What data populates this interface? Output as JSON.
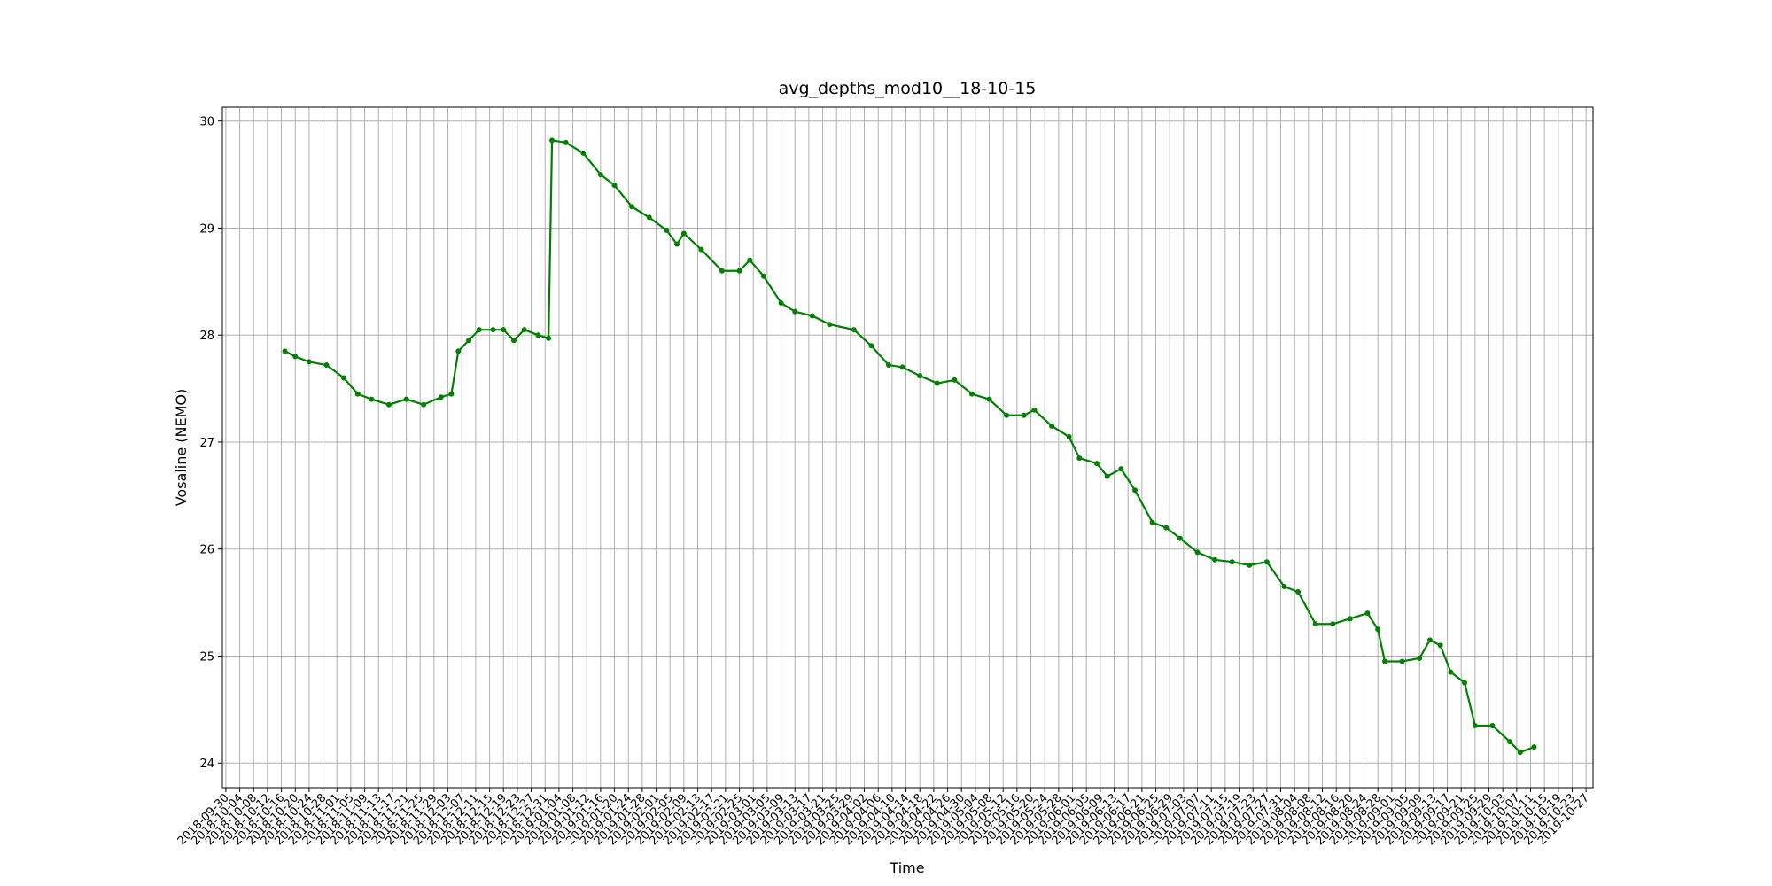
{
  "chart_data": {
    "type": "line",
    "title": "avg_depths_mod10__18-10-15",
    "xlabel": "Time",
    "ylabel": "Vosaline (NEMO)",
    "grid": true,
    "x": [
      "2018-10-17",
      "2018-10-20",
      "2018-10-24",
      "2018-10-29",
      "2018-11-03",
      "2018-11-07",
      "2018-11-11",
      "2018-11-16",
      "2018-11-21",
      "2018-11-26",
      "2018-12-01",
      "2018-12-04",
      "2018-12-06",
      "2018-12-09",
      "2018-12-12",
      "2018-12-16",
      "2018-12-19",
      "2018-12-22",
      "2018-12-25",
      "2018-12-29",
      "2019-01-01",
      "2019-01-02",
      "2019-01-06",
      "2019-01-11",
      "2019-01-16",
      "2019-01-20",
      "2019-01-25",
      "2019-01-30",
      "2019-02-04",
      "2019-02-07",
      "2019-02-09",
      "2019-02-14",
      "2019-02-20",
      "2019-02-25",
      "2019-02-28",
      "2019-03-04",
      "2019-03-09",
      "2019-03-13",
      "2019-03-18",
      "2019-03-23",
      "2019-03-30",
      "2019-04-04",
      "2019-04-09",
      "2019-04-13",
      "2019-04-18",
      "2019-04-23",
      "2019-04-28",
      "2019-05-03",
      "2019-05-08",
      "2019-05-13",
      "2019-05-18",
      "2019-05-21",
      "2019-05-26",
      "2019-05-31",
      "2019-06-03",
      "2019-06-08",
      "2019-06-11",
      "2019-06-15",
      "2019-06-19",
      "2019-06-24",
      "2019-06-28",
      "2019-07-02",
      "2019-07-07",
      "2019-07-12",
      "2019-07-17",
      "2019-07-22",
      "2019-07-27",
      "2019-08-01",
      "2019-08-05",
      "2019-08-10",
      "2019-08-15",
      "2019-08-20",
      "2019-08-25",
      "2019-08-28",
      "2019-08-30",
      "2019-09-04",
      "2019-09-09",
      "2019-09-12",
      "2019-09-15",
      "2019-09-18",
      "2019-09-22",
      "2019-09-25",
      "2019-09-30",
      "2019-10-05",
      "2019-10-08",
      "2019-10-12"
    ],
    "series": [
      {
        "color": "#008000",
        "values": [
          27.85,
          27.8,
          27.75,
          27.72,
          27.6,
          27.45,
          27.4,
          27.35,
          27.4,
          27.35,
          27.42,
          27.45,
          27.85,
          27.95,
          28.05,
          28.05,
          28.05,
          27.95,
          28.05,
          28.0,
          27.97,
          29.82,
          29.8,
          29.7,
          29.5,
          29.4,
          29.2,
          29.1,
          28.98,
          28.85,
          28.95,
          28.8,
          28.6,
          28.6,
          28.7,
          28.55,
          28.3,
          28.22,
          28.18,
          28.1,
          28.05,
          27.9,
          27.72,
          27.7,
          27.62,
          27.55,
          27.58,
          27.45,
          27.4,
          27.25,
          27.25,
          27.3,
          27.15,
          27.05,
          26.85,
          26.8,
          26.68,
          26.75,
          26.55,
          26.25,
          26.2,
          26.1,
          25.97,
          25.9,
          25.88,
          25.85,
          25.88,
          25.65,
          25.6,
          25.3,
          25.3,
          25.35,
          25.4,
          25.25,
          24.95,
          24.95,
          24.98,
          25.15,
          25.1,
          24.85,
          24.75,
          24.35,
          24.35,
          24.2,
          24.1,
          24.15
        ]
      }
    ],
    "xlim": [
      "2018-09-29",
      "2019-10-29"
    ],
    "xticks": [
      "2018-09-30",
      "2018-10-04",
      "2018-10-08",
      "2018-10-12",
      "2018-10-16",
      "2018-10-20",
      "2018-10-24",
      "2018-10-28",
      "2018-11-01",
      "2018-11-05",
      "2018-11-09",
      "2018-11-13",
      "2018-11-17",
      "2018-11-21",
      "2018-11-25",
      "2018-11-29",
      "2018-12-03",
      "2018-12-07",
      "2018-12-11",
      "2018-12-15",
      "2018-12-19",
      "2018-12-23",
      "2018-12-27",
      "2018-12-31",
      "2019-01-04",
      "2019-01-08",
      "2019-01-12",
      "2019-01-16",
      "2019-01-20",
      "2019-01-24",
      "2019-01-28",
      "2019-02-01",
      "2019-02-05",
      "2019-02-09",
      "2019-02-13",
      "2019-02-17",
      "2019-02-21",
      "2019-02-25",
      "2019-03-01",
      "2019-03-05",
      "2019-03-09",
      "2019-03-13",
      "2019-03-17",
      "2019-03-21",
      "2019-03-25",
      "2019-03-29",
      "2019-04-02",
      "2019-04-06",
      "2019-04-10",
      "2019-04-14",
      "2019-04-18",
      "2019-04-22",
      "2019-04-26",
      "2019-04-30",
      "2019-05-04",
      "2019-05-08",
      "2019-05-12",
      "2019-05-16",
      "2019-05-20",
      "2019-05-24",
      "2019-05-28",
      "2019-06-01",
      "2019-06-05",
      "2019-06-09",
      "2019-06-13",
      "2019-06-17",
      "2019-06-21",
      "2019-06-25",
      "2019-06-29",
      "2019-07-03",
      "2019-07-07",
      "2019-07-11",
      "2019-07-15",
      "2019-07-19",
      "2019-07-23",
      "2019-07-27",
      "2019-07-31",
      "2019-08-04",
      "2019-08-08",
      "2019-08-12",
      "2019-08-16",
      "2019-08-20",
      "2019-08-24",
      "2019-08-28",
      "2019-09-01",
      "2019-09-05",
      "2019-09-09",
      "2019-09-13",
      "2019-09-17",
      "2019-09-21",
      "2019-09-25",
      "2019-09-29",
      "2019-10-03",
      "2019-10-07",
      "2019-10-11",
      "2019-10-15",
      "2019-10-19",
      "2019-10-23",
      "2019-10-27"
    ],
    "ylim": [
      23.77,
      30.13
    ],
    "yticks": [
      24,
      25,
      26,
      27,
      28,
      29,
      30
    ]
  }
}
